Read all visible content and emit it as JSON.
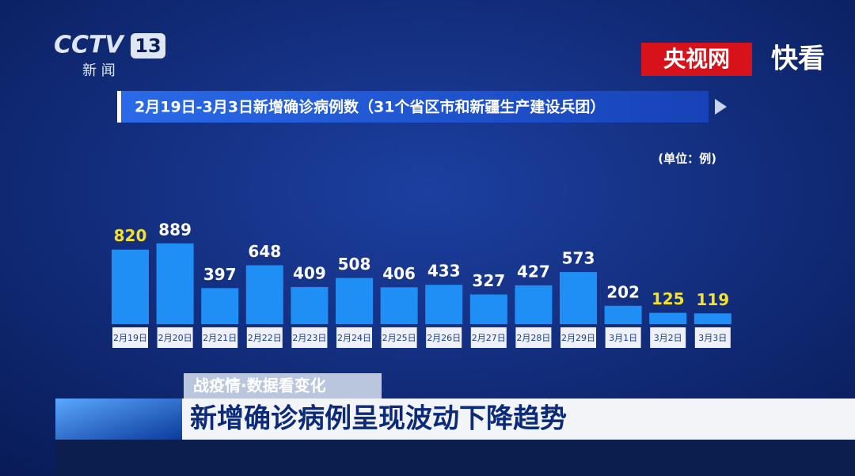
{
  "logo": {
    "brand": "CCTV",
    "channel": "13",
    "name": "新 闻"
  },
  "watermark": {
    "site": "央视网",
    "app": "快看"
  },
  "banner": {
    "tag": "战疫情·数据看变化",
    "headline": "新增确诊病例呈现波动下降趋势"
  },
  "chart_data": {
    "type": "bar",
    "title": "2月19日-3月3日新增确诊病例数（31个省区市和新疆生产建设兵团）",
    "unit": "(单位：例)",
    "categories": [
      "2月19日",
      "2月20日",
      "2月21日",
      "2月22日",
      "2月23日",
      "2月24日",
      "2月25日",
      "2月26日",
      "2月27日",
      "2月28日",
      "2月29日",
      "3月1日",
      "3月2日",
      "3月3日"
    ],
    "values": [
      820,
      889,
      397,
      648,
      409,
      508,
      406,
      433,
      327,
      427,
      573,
      202,
      125,
      119
    ],
    "color": "#1f8ef5",
    "value_label_colors": [
      "#f5e12a",
      "#ffffff",
      "#ffffff",
      "#ffffff",
      "#ffffff",
      "#ffffff",
      "#ffffff",
      "#ffffff",
      "#ffffff",
      "#ffffff",
      "#ffffff",
      "#ffffff",
      "#f5e12a",
      "#f5e12a"
    ],
    "ylim": [
      0,
      1000
    ]
  }
}
